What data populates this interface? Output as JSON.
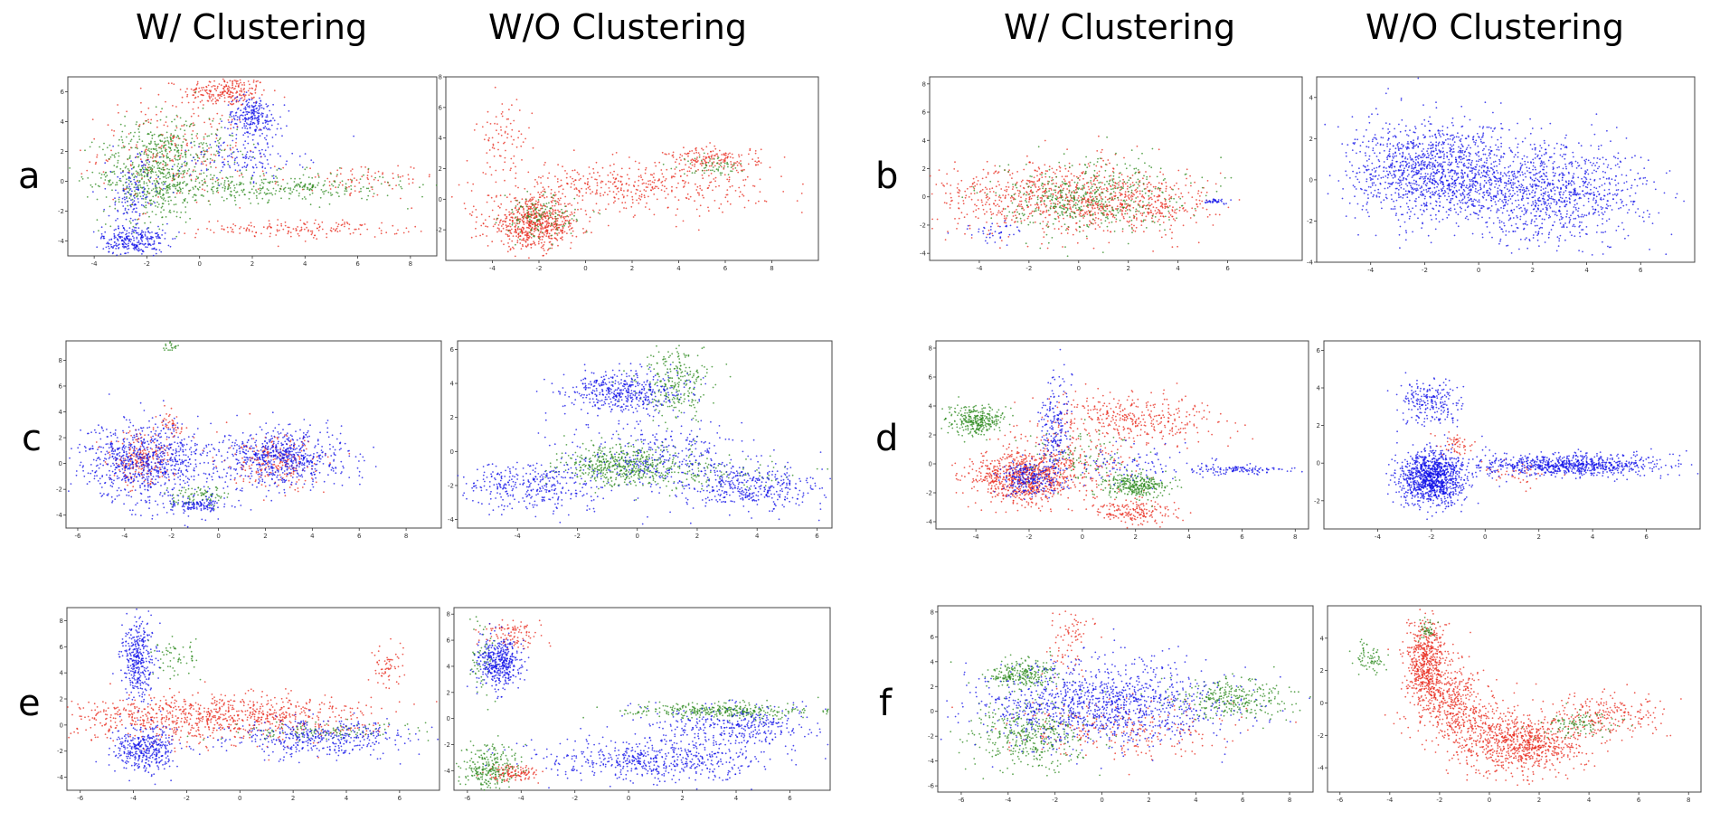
{
  "headers": {
    "left_with": "W/ Clustering",
    "left_without": "W/O Clustering",
    "right_with": "W/ Clustering",
    "right_without": "W/O Clustering"
  },
  "row_labels": [
    "a",
    "b",
    "c",
    "d",
    "e",
    "f"
  ],
  "colors": {
    "red": "#e8291c",
    "green": "#2c8a1e",
    "blue": "#1010e8"
  },
  "chart_data": [
    {
      "type": "scatter",
      "xlim": [
        -5,
        9
      ],
      "ylim": [
        -5,
        7
      ],
      "xticks": [
        -4,
        -2,
        0,
        2,
        4,
        6,
        8
      ],
      "yticks": [
        -4,
        -2,
        0,
        2,
        4,
        6
      ],
      "series": [
        {
          "color": "red",
          "clusters": [
            [
              1,
              6,
              0.8,
              0.5,
              220
            ],
            [
              -1,
              2,
              1.4,
              1.8,
              250
            ],
            [
              4,
              -3.2,
              2,
              0.3,
              160
            ],
            [
              6,
              0,
              1.5,
              0.6,
              90
            ]
          ]
        },
        {
          "color": "green",
          "clusters": [
            [
              -1.8,
              0.5,
              1,
              1.6,
              520
            ],
            [
              2.5,
              -0.4,
              2.6,
              0.5,
              360
            ],
            [
              -0.5,
              2.5,
              1,
              1,
              150
            ]
          ]
        },
        {
          "color": "blue",
          "clusters": [
            [
              -2.5,
              -4,
              0.6,
              0.5,
              260
            ],
            [
              2,
              4.3,
              0.5,
              0.7,
              240
            ],
            [
              1.5,
              1.5,
              1.2,
              0.7,
              140
            ],
            [
              -2.5,
              -1,
              0.5,
              1.4,
              150
            ]
          ]
        }
      ]
    },
    {
      "type": "scatter",
      "xlim": [
        -6,
        10
      ],
      "ylim": [
        -4,
        8
      ],
      "xticks": [
        -4,
        -2,
        0,
        2,
        4,
        6,
        8
      ],
      "yticks": [
        -2,
        0,
        2,
        4,
        6,
        8
      ],
      "series": [
        {
          "color": "red",
          "clusters": [
            [
              -2.2,
              -1.6,
              1,
              0.8,
              650
            ],
            [
              2,
              0.8,
              2.8,
              0.8,
              420
            ],
            [
              5.5,
              2.6,
              1,
              0.4,
              170
            ],
            [
              -3.5,
              4,
              0.6,
              1.2,
              80
            ]
          ]
        },
        {
          "color": "green",
          "clusters": [
            [
              -2,
              -1.2,
              0.8,
              0.7,
              140
            ],
            [
              5.5,
              2.2,
              0.7,
              0.3,
              60
            ]
          ]
        },
        {
          "color": "blue",
          "clusters": []
        }
      ]
    },
    {
      "type": "scatter",
      "xlim": [
        -6,
        9
      ],
      "ylim": [
        -4.5,
        8.5
      ],
      "xticks": [
        -4,
        -2,
        0,
        2,
        4,
        6
      ],
      "yticks": [
        -4,
        -2,
        0,
        2,
        4,
        6,
        8
      ],
      "series": [
        {
          "color": "red",
          "clusters": [
            [
              -1,
              0,
              2.5,
              1.3,
              750
            ],
            [
              2.5,
              -0.5,
              1.6,
              1,
              300
            ]
          ]
        },
        {
          "color": "green",
          "clusters": [
            [
              0.8,
              0.4,
              1.8,
              1.3,
              300
            ],
            [
              -0.5,
              -0.5,
              1.5,
              1,
              200
            ]
          ]
        },
        {
          "color": "blue",
          "clusters": [
            [
              5.5,
              -0.3,
              0.3,
              0.1,
              35
            ],
            [
              -3.5,
              -2.5,
              0.6,
              0.4,
              40
            ]
          ]
        }
      ]
    },
    {
      "type": "scatter",
      "xlim": [
        -6,
        8
      ],
      "ylim": [
        -4,
        5
      ],
      "xticks": [
        -4,
        -2,
        0,
        2,
        4,
        6
      ],
      "yticks": [
        -4,
        -2,
        0,
        2,
        4
      ],
      "series": [
        {
          "color": "red",
          "clusters": []
        },
        {
          "color": "green",
          "clusters": []
        },
        {
          "color": "blue",
          "clusters": [
            [
              -1.6,
              0.4,
              1.5,
              1.2,
              1300
            ],
            [
              2.8,
              -0.6,
              1.7,
              1.2,
              1000
            ]
          ]
        }
      ]
    },
    {
      "type": "scatter",
      "xlim": [
        -6.5,
        9.5
      ],
      "ylim": [
        -5,
        9.5
      ],
      "xticks": [
        -6,
        -4,
        -2,
        0,
        2,
        4,
        6,
        8
      ],
      "yticks": [
        -4,
        -2,
        0,
        2,
        4,
        6,
        8
      ],
      "series": [
        {
          "color": "red",
          "clusters": [
            [
              -3.3,
              0.3,
              0.7,
              1,
              220
            ],
            [
              2.5,
              0,
              1,
              1,
              220
            ],
            [
              -2,
              3,
              0.3,
              0.5,
              40
            ]
          ]
        },
        {
          "color": "green",
          "clusters": [
            [
              -2,
              9,
              0.2,
              0.2,
              20
            ],
            [
              -0.8,
              -2.6,
              0.6,
              0.4,
              90
            ]
          ]
        },
        {
          "color": "blue",
          "clusters": [
            [
              -3.3,
              0.3,
              1.2,
              1.4,
              650
            ],
            [
              2.8,
              0.5,
              1.3,
              1.1,
              650
            ],
            [
              -0.8,
              -3.2,
              0.6,
              0.3,
              120
            ],
            [
              -2,
              -0.5,
              2,
              2,
              200
            ]
          ]
        }
      ]
    },
    {
      "type": "scatter",
      "xlim": [
        -6,
        6.5
      ],
      "ylim": [
        -4.5,
        6.5
      ],
      "xticks": [
        -4,
        -2,
        0,
        2,
        4,
        6
      ],
      "yticks": [
        -4,
        -2,
        0,
        2,
        4,
        6
      ],
      "series": [
        {
          "color": "red",
          "clusters": []
        },
        {
          "color": "green",
          "clusters": [
            [
              -0.5,
              -0.8,
              1,
              0.6,
              500
            ],
            [
              1.3,
              4,
              0.6,
              1,
              250
            ],
            [
              2.3,
              -1.3,
              1.6,
              0.5,
              120
            ]
          ]
        },
        {
          "color": "blue",
          "clusters": [
            [
              -0.5,
              3.5,
              1,
              0.6,
              450
            ],
            [
              -3.5,
              -2,
              1.2,
              0.7,
              350
            ],
            [
              3.8,
              -2.2,
              1.1,
              0.7,
              350
            ],
            [
              0.8,
              -0.5,
              1.6,
              1.1,
              350
            ]
          ]
        }
      ]
    },
    {
      "type": "scatter",
      "xlim": [
        -5.5,
        8.5
      ],
      "ylim": [
        -4.5,
        8.5
      ],
      "xticks": [
        -4,
        -2,
        0,
        2,
        4,
        6,
        8
      ],
      "yticks": [
        -4,
        -2,
        0,
        2,
        4,
        6,
        8
      ],
      "series": [
        {
          "color": "red",
          "clusters": [
            [
              -2.5,
              -0.9,
              0.9,
              0.9,
              480
            ],
            [
              -0.8,
              -0.2,
              1.3,
              1.1,
              300
            ],
            [
              2,
              3,
              1.6,
              0.9,
              380
            ],
            [
              2,
              -3.3,
              0.9,
              0.4,
              180
            ],
            [
              -2,
              -1.5,
              0.6,
              0.6,
              150
            ]
          ]
        },
        {
          "color": "green",
          "clusters": [
            [
              -4,
              3,
              0.5,
              0.5,
              300
            ],
            [
              2,
              -1.5,
              0.6,
              0.4,
              300
            ],
            [
              0,
              0.5,
              1,
              1,
              100
            ]
          ]
        },
        {
          "color": "blue",
          "clusters": [
            [
              -2,
              -1,
              0.6,
              0.6,
              260
            ],
            [
              -1,
              2.5,
              0.3,
              1.8,
              200
            ],
            [
              6,
              -0.4,
              0.9,
              0.15,
              120
            ],
            [
              2,
              0,
              1.4,
              0.7,
              100
            ]
          ]
        }
      ]
    },
    {
      "type": "scatter",
      "xlim": [
        -6,
        8
      ],
      "ylim": [
        -3.5,
        6.5
      ],
      "xticks": [
        -4,
        -2,
        0,
        2,
        4,
        6
      ],
      "yticks": [
        -2,
        0,
        2,
        4,
        6
      ],
      "series": [
        {
          "color": "red",
          "clusters": [
            [
              -1,
              1,
              0.4,
              0.3,
              50
            ],
            [
              1,
              -0.6,
              0.7,
              0.3,
              40
            ]
          ]
        },
        {
          "color": "green",
          "clusters": []
        },
        {
          "color": "blue",
          "clusters": [
            [
              -2,
              -0.8,
              0.6,
              0.7,
              1100
            ],
            [
              3,
              -0.1,
              1.8,
              0.3,
              800
            ],
            [
              -2,
              3.2,
              0.6,
              0.6,
              220
            ]
          ]
        }
      ]
    },
    {
      "type": "scatter",
      "xlim": [
        -6.5,
        7.5
      ],
      "ylim": [
        -5,
        9
      ],
      "xticks": [
        -6,
        -4,
        -2,
        0,
        2,
        4,
        6
      ],
      "yticks": [
        -4,
        -2,
        0,
        2,
        4,
        6,
        8
      ],
      "series": [
        {
          "color": "red",
          "clusters": [
            [
              -1,
              0.5,
              2.8,
              0.9,
              900
            ],
            [
              5.5,
              4.5,
              0.3,
              0.9,
              60
            ]
          ]
        },
        {
          "color": "green",
          "clusters": [
            [
              -2.5,
              5,
              0.4,
              0.8,
              60
            ],
            [
              3,
              -0.5,
              2,
              0.4,
              120
            ]
          ]
        },
        {
          "color": "blue",
          "clusters": [
            [
              -3.8,
              5,
              0.3,
              1.5,
              350
            ],
            [
              -3.6,
              -1.8,
              0.6,
              0.9,
              380
            ],
            [
              3,
              -1,
              1.5,
              0.7,
              400
            ]
          ]
        }
      ]
    },
    {
      "type": "scatter",
      "xlim": [
        -6.5,
        7.5
      ],
      "ylim": [
        -5.5,
        8.5
      ],
      "xticks": [
        -6,
        -4,
        -2,
        0,
        2,
        4,
        6
      ],
      "yticks": [
        -4,
        -2,
        0,
        2,
        4,
        6,
        8
      ],
      "series": [
        {
          "color": "red",
          "clusters": [
            [
              -4.3,
              6.5,
              0.6,
              0.6,
              100
            ],
            [
              -4.3,
              -4.2,
              0.5,
              0.3,
              120
            ]
          ]
        },
        {
          "color": "green",
          "clusters": [
            [
              -5.2,
              -3.7,
              0.6,
              0.8,
              250
            ],
            [
              3.5,
              0.6,
              1.8,
              0.3,
              350
            ],
            [
              -5.5,
              4.5,
              0.3,
              1.5,
              60
            ]
          ]
        },
        {
          "color": "blue",
          "clusters": [
            [
              -4.8,
              4.3,
              0.4,
              0.9,
              420
            ],
            [
              1,
              -3.2,
              2,
              0.8,
              550
            ],
            [
              4,
              -0.5,
              1.5,
              0.8,
              350
            ]
          ]
        }
      ]
    },
    {
      "type": "scatter",
      "xlim": [
        -7,
        9
      ],
      "ylim": [
        -6.5,
        8.5
      ],
      "xticks": [
        -6,
        -4,
        -2,
        0,
        2,
        4,
        6,
        8
      ],
      "yticks": [
        -6,
        -4,
        -2,
        0,
        2,
        4,
        6,
        8
      ],
      "series": [
        {
          "color": "red",
          "clusters": [
            [
              -1.5,
              5.5,
              0.5,
              1.4,
              80
            ],
            [
              1,
              -1.5,
              2.5,
              1.2,
              250
            ]
          ]
        },
        {
          "color": "green",
          "clusters": [
            [
              -3.5,
              3,
              0.8,
              0.6,
              250
            ],
            [
              -3,
              -2,
              1.2,
              1.3,
              400
            ],
            [
              5.5,
              1,
              1.3,
              0.8,
              300
            ]
          ]
        },
        {
          "color": "blue",
          "clusters": [
            [
              0,
              0.5,
              2.6,
              1.7,
              1200
            ]
          ]
        }
      ]
    },
    {
      "type": "scatter",
      "xlim": [
        -6.5,
        8.5
      ],
      "ylim": [
        -5.5,
        6
      ],
      "xticks": [
        -6,
        -4,
        -2,
        0,
        2,
        4,
        6,
        8
      ],
      "yticks": [
        -4,
        -2,
        0,
        2,
        4
      ],
      "series": [
        {
          "color": "red",
          "clusters": [
            [
              -2.5,
              2.5,
              0.4,
              1.2,
              550
            ],
            [
              -1.5,
              0,
              0.8,
              1.2,
              450
            ],
            [
              1.5,
              -2.7,
              1.2,
              0.8,
              600
            ],
            [
              4.5,
              -0.8,
              1.3,
              0.8,
              250
            ],
            [
              0,
              -2,
              1,
              1,
              250
            ]
          ]
        },
        {
          "color": "green",
          "clusters": [
            [
              -4.8,
              2.7,
              0.3,
              0.5,
              70
            ],
            [
              3.5,
              -1.3,
              0.8,
              0.4,
              100
            ],
            [
              -2.5,
              4.6,
              0.2,
              0.3,
              40
            ]
          ]
        },
        {
          "color": "blue",
          "clusters": []
        }
      ]
    }
  ]
}
